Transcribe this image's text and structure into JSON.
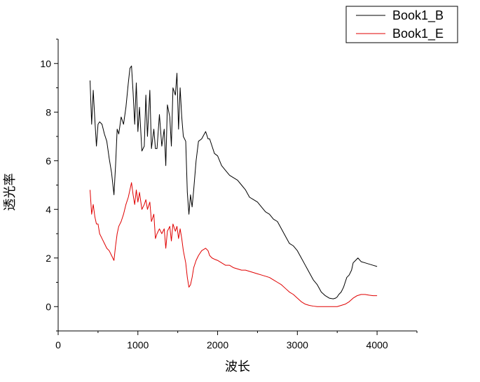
{
  "chart_data": {
    "type": "line",
    "xlabel": "波长",
    "ylabel": "透光率",
    "xlim": [
      0,
      4500
    ],
    "ylim": [
      -1,
      11
    ],
    "xticks": [
      0,
      1000,
      2000,
      3000,
      4000
    ],
    "yticks": [
      0,
      2,
      4,
      6,
      8,
      10
    ],
    "grid": false,
    "legend": "top-right",
    "series": [
      {
        "name": "Book1_B",
        "color": "#000000",
        "x": [
          400,
          420,
          440,
          460,
          480,
          500,
          520,
          550,
          580,
          610,
          640,
          670,
          700,
          720,
          740,
          760,
          790,
          820,
          850,
          880,
          900,
          920,
          940,
          960,
          980,
          1000,
          1020,
          1050,
          1080,
          1100,
          1120,
          1150,
          1170,
          1200,
          1220,
          1240,
          1270,
          1300,
          1330,
          1350,
          1370,
          1400,
          1420,
          1440,
          1470,
          1490,
          1510,
          1530,
          1550,
          1570,
          1600,
          1620,
          1640,
          1660,
          1680,
          1700,
          1730,
          1760,
          1800,
          1850,
          1880,
          1900,
          1930,
          1960,
          2000,
          2050,
          2100,
          2150,
          2200,
          2250,
          2300,
          2350,
          2400,
          2450,
          2500,
          2550,
          2600,
          2650,
          2700,
          2750,
          2800,
          2850,
          2900,
          2950,
          3000,
          3050,
          3100,
          3150,
          3200,
          3250,
          3300,
          3350,
          3400,
          3430,
          3450,
          3480,
          3500,
          3520,
          3550,
          3580,
          3600,
          3620,
          3650,
          3680,
          3700,
          3730,
          3760,
          3800,
          3850,
          3900,
          3950,
          4000
        ],
        "y": [
          9.3,
          7.5,
          8.9,
          7.7,
          6.6,
          7.5,
          7.6,
          7.5,
          7.1,
          6.8,
          6.1,
          5.5,
          4.6,
          5.8,
          7.3,
          7.1,
          7.8,
          7.5,
          8.2,
          9.2,
          9.8,
          9.9,
          8.8,
          7.5,
          9.2,
          7.2,
          8.2,
          6.4,
          6.6,
          8.7,
          7.0,
          8.9,
          6.5,
          7.3,
          6.5,
          6.5,
          7.9,
          6.6,
          7.3,
          5.8,
          8.3,
          7.8,
          6.6,
          9.0,
          8.7,
          9.6,
          7.3,
          9.0,
          7.8,
          7.0,
          6.8,
          4.7,
          3.8,
          4.6,
          4.1,
          4.8,
          6.0,
          6.8,
          6.9,
          7.2,
          6.9,
          6.9,
          6.6,
          6.3,
          6.2,
          5.8,
          5.6,
          5.4,
          5.3,
          5.2,
          5.0,
          4.8,
          4.5,
          4.4,
          4.3,
          4.1,
          3.9,
          3.8,
          3.6,
          3.5,
          3.2,
          2.9,
          2.6,
          2.5,
          2.3,
          2.0,
          1.7,
          1.4,
          1.1,
          0.9,
          0.6,
          0.45,
          0.35,
          0.33,
          0.32,
          0.35,
          0.4,
          0.5,
          0.6,
          0.8,
          1.0,
          1.2,
          1.3,
          1.5,
          1.8,
          1.9,
          2.0,
          1.85,
          1.8,
          1.75,
          1.7,
          1.65
        ]
      },
      {
        "name": "Book1_E",
        "color": "#e00000",
        "x": [
          400,
          420,
          440,
          460,
          480,
          500,
          520,
          550,
          580,
          610,
          640,
          670,
          700,
          720,
          740,
          760,
          790,
          820,
          850,
          880,
          900,
          920,
          940,
          960,
          980,
          1000,
          1020,
          1050,
          1080,
          1100,
          1120,
          1150,
          1170,
          1200,
          1220,
          1240,
          1270,
          1300,
          1330,
          1350,
          1370,
          1400,
          1420,
          1440,
          1470,
          1490,
          1510,
          1530,
          1550,
          1570,
          1600,
          1620,
          1640,
          1660,
          1680,
          1700,
          1730,
          1760,
          1800,
          1850,
          1880,
          1900,
          1930,
          1960,
          2000,
          2050,
          2100,
          2150,
          2200,
          2250,
          2300,
          2350,
          2400,
          2450,
          2500,
          2550,
          2600,
          2650,
          2700,
          2750,
          2800,
          2850,
          2900,
          2950,
          3000,
          3050,
          3100,
          3150,
          3200,
          3250,
          3300,
          3350,
          3400,
          3450,
          3500,
          3550,
          3600,
          3650,
          3700,
          3750,
          3800,
          3850,
          3900,
          3950,
          4000
        ],
        "y": [
          4.8,
          3.8,
          4.2,
          3.7,
          3.4,
          3.4,
          3.0,
          2.8,
          2.6,
          2.4,
          2.3,
          2.1,
          1.9,
          2.5,
          3.0,
          3.3,
          3.5,
          3.8,
          4.2,
          4.5,
          4.8,
          5.1,
          4.6,
          4.2,
          4.8,
          4.3,
          4.7,
          4.0,
          4.2,
          4.4,
          4.0,
          4.3,
          3.5,
          3.8,
          2.8,
          3.0,
          3.2,
          3.0,
          3.2,
          2.4,
          3.1,
          3.3,
          2.7,
          3.4,
          3.1,
          3.3,
          2.8,
          3.2,
          2.8,
          2.3,
          1.8,
          1.2,
          0.8,
          0.9,
          1.2,
          1.6,
          1.9,
          2.1,
          2.3,
          2.4,
          2.3,
          2.1,
          2.0,
          1.95,
          1.9,
          1.8,
          1.7,
          1.7,
          1.6,
          1.55,
          1.5,
          1.5,
          1.45,
          1.4,
          1.35,
          1.3,
          1.25,
          1.2,
          1.1,
          1.0,
          0.9,
          0.75,
          0.6,
          0.5,
          0.35,
          0.2,
          0.1,
          0.05,
          0.02,
          0.0,
          0.0,
          0.0,
          0.0,
          0.0,
          0.0,
          0.05,
          0.1,
          0.2,
          0.35,
          0.45,
          0.5,
          0.5,
          0.47,
          0.45,
          0.45
        ]
      }
    ]
  }
}
